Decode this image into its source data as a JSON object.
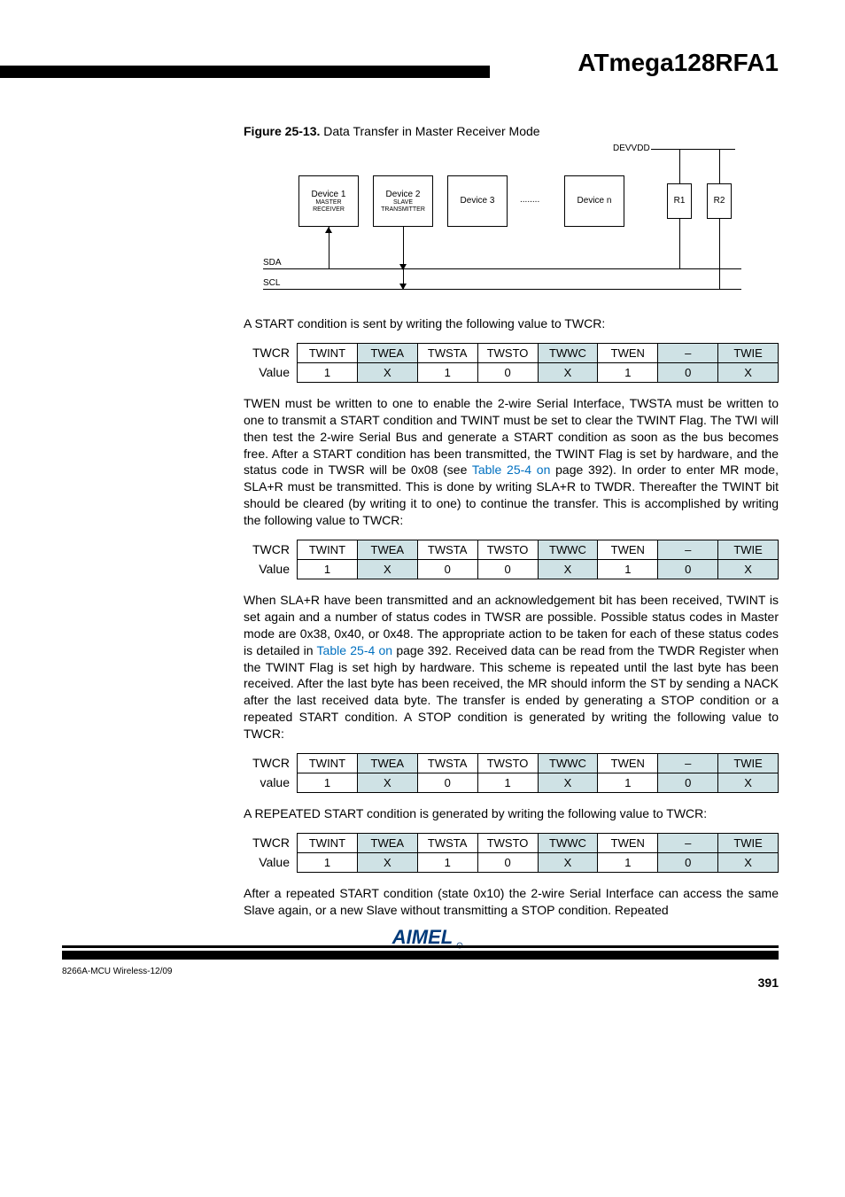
{
  "header": {
    "title": "ATmega128RFA1"
  },
  "figure": {
    "caption_bold": "Figure 25-13.",
    "caption_rest": " Data Transfer in Master Receiver Mode",
    "devvdd": "DEVVDD",
    "dev1": {
      "name": "Device 1",
      "sub1": "MASTER",
      "sub2": "RECEIVER"
    },
    "dev2": {
      "name": "Device 2",
      "sub1": "SLAVE",
      "sub2": "TRANSMITTER"
    },
    "dev3": "Device 3",
    "dots": "........",
    "devn": "Device n",
    "r1": "R1",
    "r2": "R2",
    "sda": "SDA",
    "scl": "SCL"
  },
  "para_start": "A START condition is sent by writing the following value to TWCR:",
  "headers": [
    "TWINT",
    "TWEA",
    "TWSTA",
    "TWSTO",
    "TWWC",
    "TWEN",
    "–",
    "TWIE"
  ],
  "shaded_cols": [
    false,
    true,
    false,
    false,
    true,
    false,
    true,
    true
  ],
  "twcr_label": "TWCR",
  "value_label": "Value",
  "value_label_lc": "value",
  "t1_values": [
    "1",
    "X",
    "1",
    "0",
    "X",
    "1",
    "0",
    "X"
  ],
  "para_twen_1": "TWEN must be written to one to enable the 2-wire Serial Interface, TWSTA must be written to one to transmit a START condition and TWINT must be set to clear the TWINT Flag. The TWI will then test the 2-wire Serial Bus and generate a START condition as soon as the bus becomes free. After a START condition has been transmitted, the TWINT Flag is set by hardware, and the status code in TWSR will be 0x08 (see ",
  "para_twen_link": "Table 25-4 on",
  "para_twen_2": " page 392). In order to enter MR mode, SLA+R must be transmitted. This is done by writing SLA+R to TWDR. Thereafter the TWINT bit should be cleared (by writing it to one) to continue the transfer. This is accomplished by writing the following value to TWCR:",
  "t2_values": [
    "1",
    "X",
    "0",
    "0",
    "X",
    "1",
    "0",
    "X"
  ],
  "para_sla_1": "When SLA+R have been transmitted and an acknowledgement bit has been received, TWINT is set again and a number of status codes in TWSR are possible. Possible status codes in Master mode are 0x38, 0x40, or 0x48. The appropriate action to be taken for each of these status codes is detailed in ",
  "para_sla_link": "Table 25-4 on",
  "para_sla_2": " page 392. Received data can be read from the TWDR Register when the TWINT Flag is set high by hardware. This scheme is repeated until the last byte has been received. After the last byte has been received, the MR should inform the ST by sending a NACK after the last received data byte. The transfer is ended by generating a STOP condition or a repeated START condition. A STOP condition is generated by writing the following value to TWCR:",
  "t3_values": [
    "1",
    "X",
    "0",
    "1",
    "X",
    "1",
    "0",
    "X"
  ],
  "para_repstart": "A REPEATED START condition is generated by writing the following value to TWCR:",
  "t4_values": [
    "1",
    "X",
    "1",
    "0",
    "X",
    "1",
    "0",
    "X"
  ],
  "para_after": "After a repeated START condition (state 0x10) the 2-wire Serial Interface can access the same Slave again, or a new Slave without transmitting a STOP condition. Repeated",
  "footer": {
    "docref": "8266A-MCU Wireless-12/09",
    "page": "391"
  }
}
